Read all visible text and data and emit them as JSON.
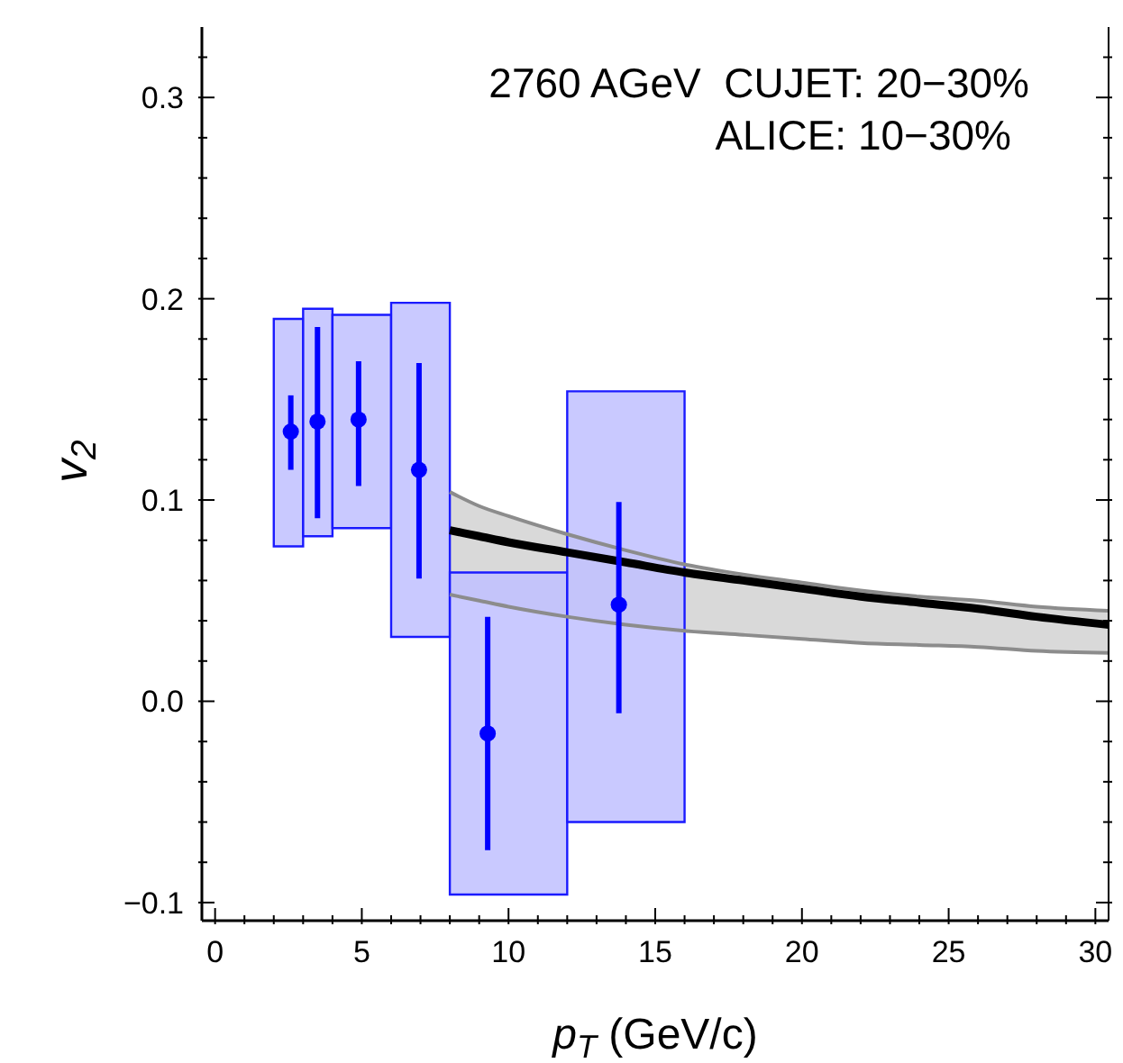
{
  "chart_data": {
    "type": "scatter",
    "xlabel": "p$_{T}$ (GeV/c)",
    "ylabel": "v$_{2}$",
    "annotations": [
      "2760 AGeV  CUJET: 20−30%",
      "ALICE: 10−30%"
    ],
    "xlim": [
      -0.45,
      30.45
    ],
    "ylim": [
      -0.109,
      0.335
    ],
    "xticks": [
      0,
      {
        "value": 1,
        "label": null
      },
      {
        "value": 2,
        "label": null
      },
      {
        "value": 3,
        "label": null
      },
      {
        "value": 4,
        "label": null
      },
      5,
      {
        "value": 6,
        "label": null
      },
      {
        "value": 7,
        "label": null
      },
      {
        "value": 8,
        "label": null
      },
      {
        "value": 9,
        "label": null
      },
      10,
      {
        "value": 11,
        "label": null
      },
      {
        "value": 12,
        "label": null
      },
      {
        "value": 13,
        "label": null
      },
      {
        "value": 14,
        "label": null
      },
      15,
      {
        "value": 16,
        "label": null
      },
      {
        "value": 17,
        "label": null
      },
      {
        "value": 18,
        "label": null
      },
      {
        "value": 19,
        "label": null
      },
      20,
      {
        "value": 21,
        "label": null
      },
      {
        "value": 22,
        "label": null
      },
      {
        "value": 23,
        "label": null
      },
      {
        "value": 24,
        "label": null
      },
      25,
      {
        "value": 26,
        "label": null
      },
      {
        "value": 27,
        "label": null
      },
      {
        "value": 28,
        "label": null
      },
      {
        "value": 29,
        "label": null
      },
      30
    ],
    "yticks": [
      {
        "value": -0.1,
        "label": "−0.1"
      },
      {
        "value": -0.08,
        "label": null
      },
      {
        "value": -0.06,
        "label": null
      },
      {
        "value": -0.04,
        "label": null
      },
      {
        "value": -0.02,
        "label": null
      },
      {
        "value": 0,
        "label": "0.0"
      },
      {
        "value": 0.02,
        "label": null
      },
      {
        "value": 0.04,
        "label": null
      },
      {
        "value": 0.06,
        "label": null
      },
      {
        "value": 0.08,
        "label": null
      },
      0.1,
      {
        "value": 0.12,
        "label": null
      },
      {
        "value": 0.14,
        "label": null
      },
      {
        "value": 0.16,
        "label": null
      },
      {
        "value": 0.18,
        "label": null
      },
      0.2,
      {
        "value": 0.22,
        "label": null
      },
      {
        "value": 0.24,
        "label": null
      },
      {
        "value": 0.26,
        "label": null
      },
      {
        "value": 0.28,
        "label": null
      },
      0.3,
      {
        "value": 0.32,
        "label": null
      }
    ],
    "series": [
      {
        "type": "histogram",
        "color": "#bfbfff",
        "bins": [
          2,
          3,
          4,
          6,
          8,
          12,
          16
        ],
        "base": [
          0.077,
          0.082,
          0.086,
          0.032,
          -0.096,
          -0.06
        ],
        "values": [
          0.113,
          0.113,
          0.106,
          0.166,
          0.16,
          0.214
        ]
      },
      {
        "marker": "circle",
        "color": "#0000ff",
        "x": [
          2.58,
          3.49,
          4.89,
          6.95,
          9.29,
          13.76
        ],
        "values": [
          0.134,
          0.139,
          0.14,
          0.115,
          -0.016,
          0.048
        ],
        "errors": [
          [
            0.115,
            0.152
          ],
          [
            0.091,
            0.186
          ],
          [
            0.107,
            0.169
          ],
          [
            0.061,
            0.168
          ],
          [
            -0.074,
            0.042
          ],
          [
            -0.006,
            0.099
          ]
        ]
      },
      {
        "type": "line",
        "color": "#000000",
        "x": [
          8,
          9,
          10,
          12,
          14,
          16,
          18,
          20,
          22,
          24,
          26,
          28,
          30.45
        ],
        "values": [
          0.085,
          0.082,
          0.079,
          0.074,
          0.069,
          0.064,
          0.06,
          0.056,
          0.052,
          0.049,
          0.046,
          0.042,
          0.038
        ],
        "lower": [
          0.053,
          0.05,
          0.047,
          0.042,
          0.038,
          0.035,
          0.033,
          0.031,
          0.029,
          0.028,
          0.027,
          0.025,
          0.024
        ],
        "upper": [
          0.104,
          0.097,
          0.092,
          0.083,
          0.075,
          0.068,
          0.063,
          0.059,
          0.055,
          0.052,
          0.05,
          0.047,
          0.045
        ]
      },
      {
        "type": "line",
        "color": "#8c8c8c",
        "x": [
          8,
          9,
          10,
          12,
          14,
          16,
          18,
          20,
          22,
          24,
          26,
          28,
          30.45
        ],
        "values": [
          0.104,
          0.097,
          0.092,
          0.083,
          0.075,
          0.068,
          0.063,
          0.059,
          0.055,
          0.052,
          0.05,
          0.047,
          0.045
        ]
      },
      {
        "type": "line",
        "color": "#8c8c8c",
        "x": [
          8,
          9,
          10,
          12,
          14,
          16,
          18,
          20,
          22,
          24,
          26,
          28,
          30.45
        ],
        "values": [
          0.053,
          0.05,
          0.047,
          0.042,
          0.038,
          0.035,
          0.033,
          0.031,
          0.029,
          0.028,
          0.027,
          0.025,
          0.024
        ]
      }
    ]
  }
}
